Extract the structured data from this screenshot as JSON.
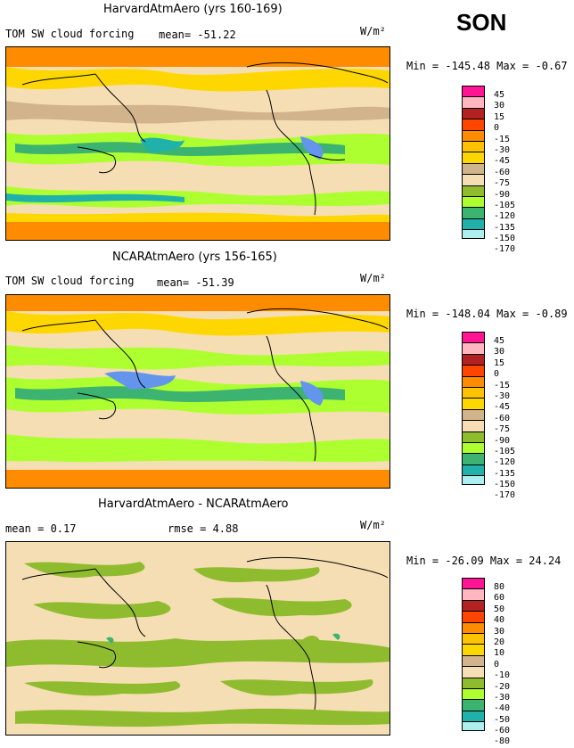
{
  "season": "SON",
  "panels": [
    {
      "title": "HarvardAtmAero (yrs 160-169)",
      "subtitle": "TOM SW cloud forcing",
      "stat": "mean=  -51.22",
      "units": "W/m²",
      "minmax": "Min = -145.48 Max =  -0.67",
      "levels": [
        "45",
        "30",
        "15",
        "0",
        "-15",
        "-30",
        "-45",
        "-60",
        "-75",
        "-90",
        "-105",
        "-120",
        "-135",
        "-150",
        "-170"
      ],
      "palette": [
        "#ff1493",
        "#ffb6c1",
        "#b22222",
        "#ff4500",
        "#ff8c00",
        "#ffc200",
        "#ffd700",
        "#d2b48c",
        "#f5deb3",
        "#8fbc2f",
        "#adff2f",
        "#3cb371",
        "#20b2aa",
        "#afeeee",
        "#6495ed",
        "#4169e1",
        "#0000cd",
        "#9370db"
      ]
    },
    {
      "title": "NCARAtmAero (yrs 156-165)",
      "subtitle": "TOM SW cloud forcing",
      "stat": "mean=  -51.39",
      "units": "W/m²",
      "minmax": "Min = -148.04 Max =  -0.89",
      "levels": [
        "45",
        "30",
        "15",
        "0",
        "-15",
        "-30",
        "-45",
        "-60",
        "-75",
        "-90",
        "-105",
        "-120",
        "-135",
        "-150",
        "-170"
      ],
      "palette": [
        "#ff1493",
        "#ffb6c1",
        "#b22222",
        "#ff4500",
        "#ff8c00",
        "#ffc200",
        "#ffd700",
        "#d2b48c",
        "#f5deb3",
        "#8fbc2f",
        "#adff2f",
        "#3cb371",
        "#20b2aa",
        "#afeeee",
        "#6495ed",
        "#4169e1",
        "#0000cd",
        "#9370db"
      ]
    },
    {
      "title": "HarvardAtmAero - NCARAtmAero",
      "subtitle": "mean =    0.17",
      "stat": "rmse =    4.88",
      "units": "W/m²",
      "minmax": "Min = -26.09 Max =  24.24",
      "levels": [
        "80",
        "60",
        "50",
        "40",
        "30",
        "20",
        "10",
        "0",
        "-10",
        "-20",
        "-30",
        "-40",
        "-50",
        "-60",
        "-80"
      ],
      "palette": [
        "#ff1493",
        "#ffb6c1",
        "#b22222",
        "#ff4500",
        "#ff8c00",
        "#ffc200",
        "#ffd700",
        "#d2b48c",
        "#f5deb3",
        "#8fbc2f",
        "#adff2f",
        "#3cb371",
        "#20b2aa",
        "#afeeee",
        "#6495ed",
        "#4169e1",
        "#0000cd",
        "#9370db"
      ]
    }
  ]
}
